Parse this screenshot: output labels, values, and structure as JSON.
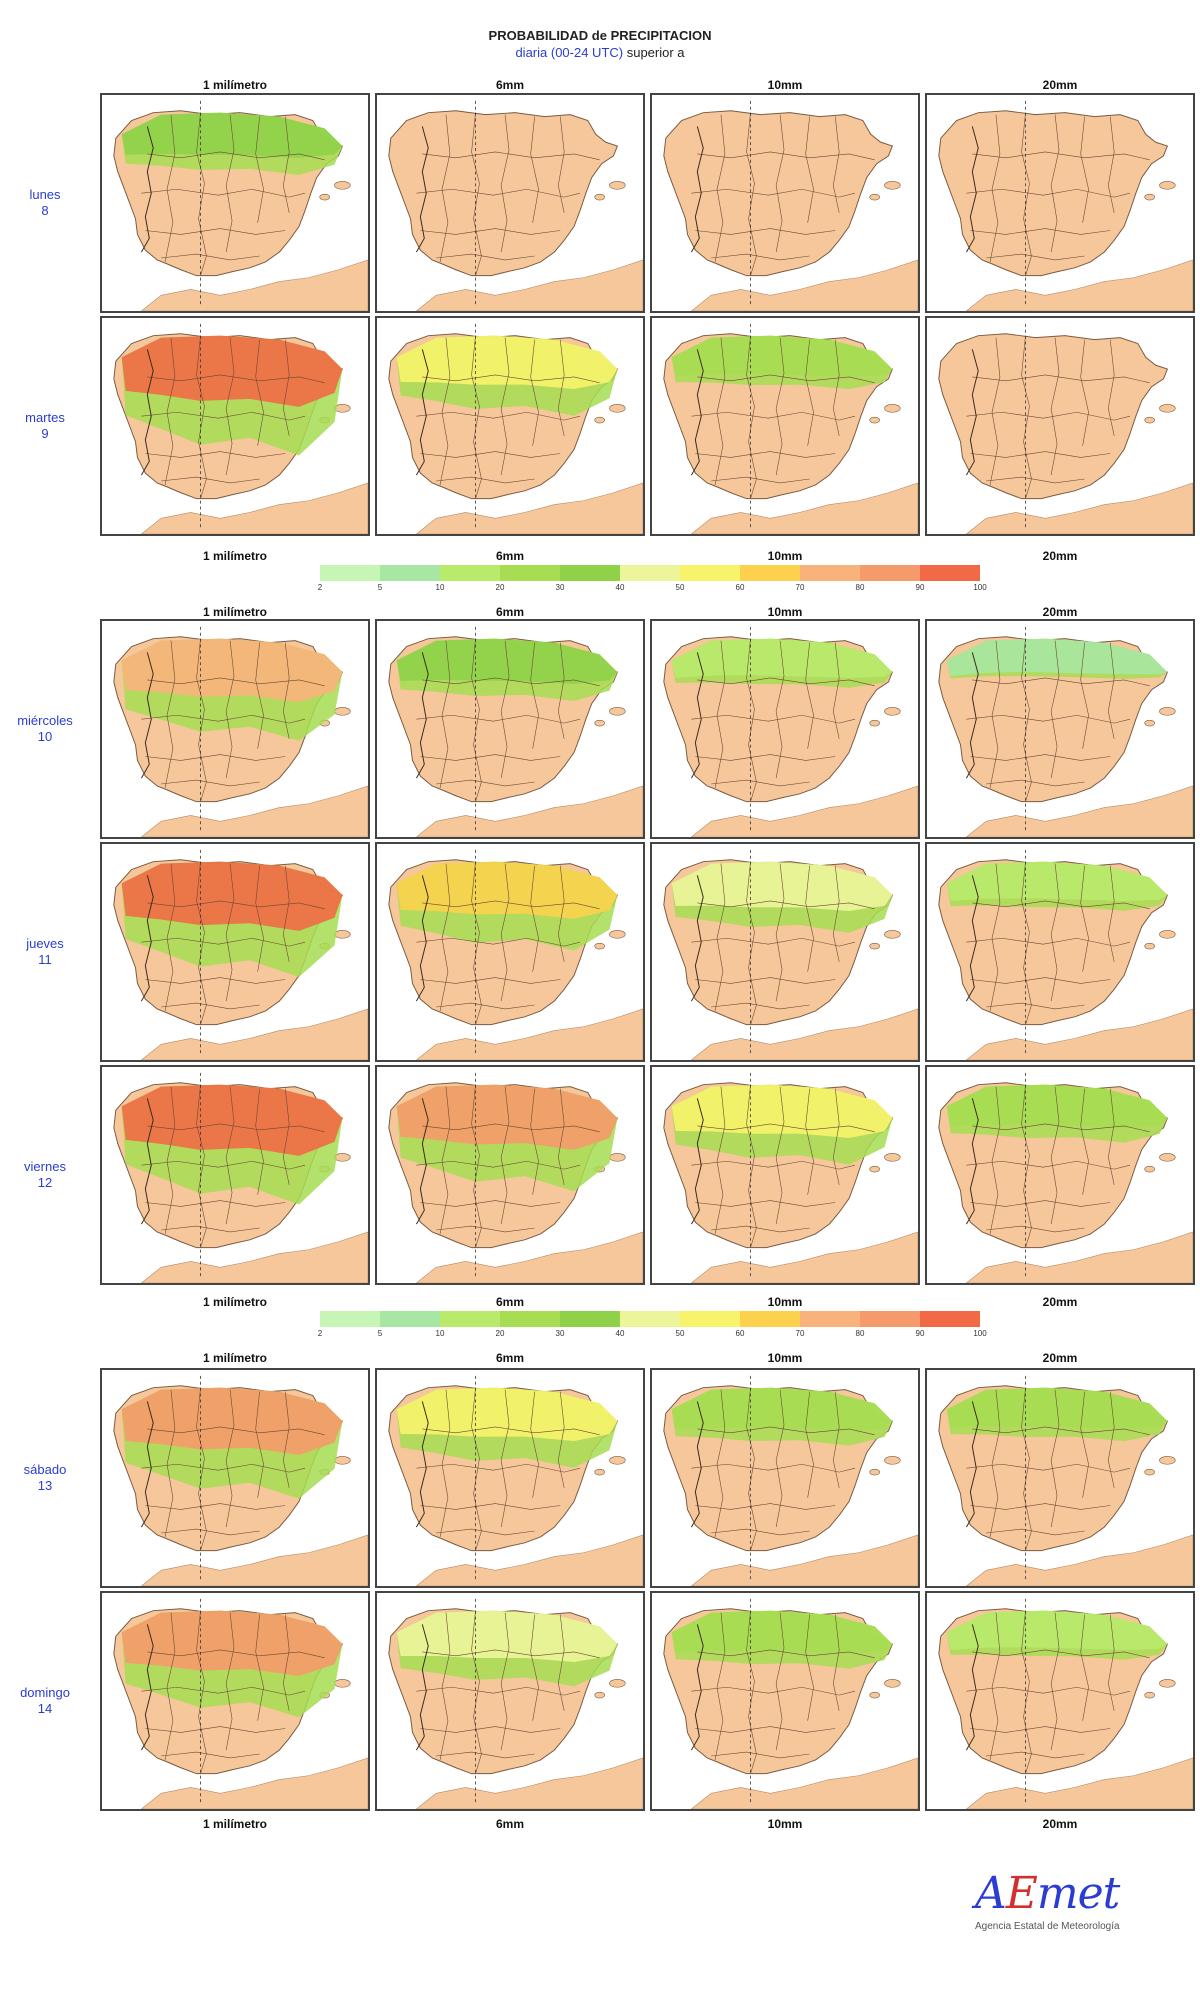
{
  "header": {
    "title": "PROBABILIDAD de PRECIPITACION",
    "subtitle_blue": "diaria (00-24 UTC)",
    "subtitle_rest": " superior a"
  },
  "thresholds": [
    "1 milímetro",
    "6mm",
    "10mm",
    "20mm"
  ],
  "days": [
    {
      "name": "lunes",
      "num": "8"
    },
    {
      "name": "martes",
      "num": "9"
    },
    {
      "name": "miércoles",
      "num": "10"
    },
    {
      "name": "jueves",
      "num": "11"
    },
    {
      "name": "viernes",
      "num": "12"
    },
    {
      "name": "sábado",
      "num": "13"
    },
    {
      "name": "domingo",
      "num": "14"
    }
  ],
  "colorbar": {
    "ticks": [
      "2",
      "5",
      "10",
      "20",
      "30",
      "40",
      "50",
      "60",
      "70",
      "80",
      "90",
      "100"
    ],
    "colors": [
      "#c6f5b5",
      "#a8e6a3",
      "#b9ea6b",
      "#a6dd52",
      "#8fd24a",
      "#ecf59a",
      "#f7f36b",
      "#fbd14d",
      "#f8b37c",
      "#f59a6a",
      "#f16a45"
    ]
  },
  "precip_intensity": [
    [
      0.35,
      0.0,
      0.0,
      0.0
    ],
    [
      1.0,
      0.55,
      0.25,
      0.0
    ],
    [
      0.8,
      0.35,
      0.2,
      0.1
    ],
    [
      0.95,
      0.65,
      0.45,
      0.2
    ],
    [
      1.0,
      0.85,
      0.55,
      0.3
    ],
    [
      0.9,
      0.55,
      0.3,
      0.25
    ],
    [
      0.85,
      0.5,
      0.3,
      0.2
    ]
  ],
  "logo": {
    "name_a": "A",
    "name_e": "E",
    "name_rest": "met",
    "full_name": "Agencia Estatal de Meteorología"
  }
}
